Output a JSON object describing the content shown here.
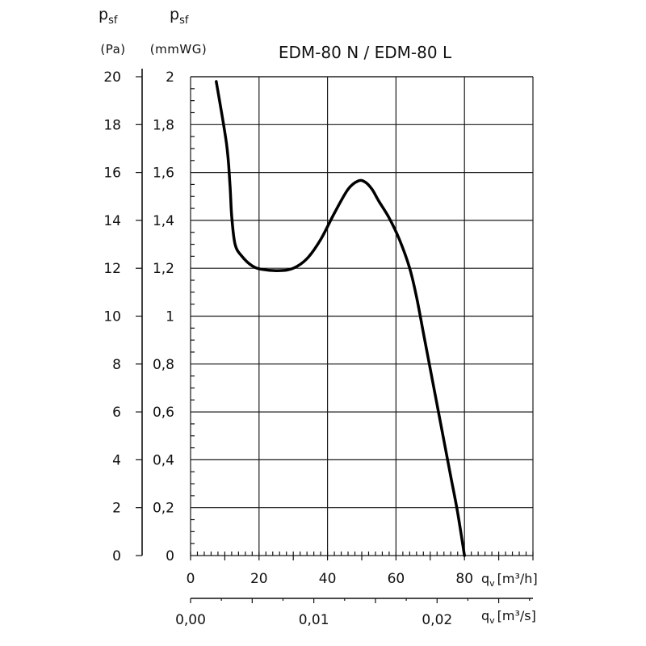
{
  "chart_data": {
    "type": "line",
    "title": "EDM-80 N / EDM-80 L",
    "x_primary": {
      "label_main": "q",
      "label_sub": "v",
      "unit": "[m³/h]",
      "range": [
        0,
        100
      ],
      "ticks": [
        "0",
        "20",
        "40",
        "60",
        "80"
      ],
      "tick_values": [
        0,
        20,
        40,
        60,
        80
      ],
      "grid_step": 20,
      "minor_step": 10
    },
    "x_secondary": {
      "label_main": "q",
      "label_sub": "v",
      "unit": "[m³/s]",
      "ticks": [
        "0,00",
        "0,01",
        "0,02"
      ],
      "tick_values": [
        0,
        0.01,
        0.02
      ]
    },
    "y_left": {
      "label_main": "p",
      "label_sub": "sf",
      "unit": "(Pa)",
      "range": [
        0,
        20
      ],
      "ticks": [
        "0",
        "2",
        "4",
        "6",
        "8",
        "10",
        "12",
        "14",
        "16",
        "18",
        "20"
      ],
      "tick_values": [
        0,
        2,
        4,
        6,
        8,
        10,
        12,
        14,
        16,
        18,
        20
      ]
    },
    "y_right": {
      "label_main": "p",
      "label_sub": "sf",
      "unit": "(mmWG)",
      "range": [
        0,
        2
      ],
      "ticks": [
        "0",
        "0,2",
        "0,4",
        "0,6",
        "0,8",
        "1",
        "1,2",
        "1,4",
        "1,6",
        "1,8",
        "2"
      ],
      "tick_values": [
        0,
        0.2,
        0.4,
        0.6,
        0.8,
        1,
        1.2,
        1.4,
        1.6,
        1.8,
        2
      ]
    },
    "series": [
      {
        "x": [
          7.5,
          10.5,
          11.5,
          12,
          13,
          15,
          18,
          21,
          26,
          30,
          34,
          38,
          42,
          46,
          49,
          51,
          53,
          55,
          58,
          61,
          64,
          66,
          68,
          70,
          72,
          74,
          76,
          78,
          80
        ],
        "y": [
          19.8,
          17.2,
          15.5,
          14.2,
          13.0,
          12.5,
          12.1,
          11.95,
          11.9,
          12.0,
          12.4,
          13.2,
          14.3,
          15.3,
          15.65,
          15.6,
          15.3,
          14.8,
          14.1,
          13.2,
          12.0,
          10.8,
          9.3,
          7.8,
          6.3,
          4.8,
          3.3,
          1.8,
          0
        ]
      }
    ],
    "grid": true
  }
}
